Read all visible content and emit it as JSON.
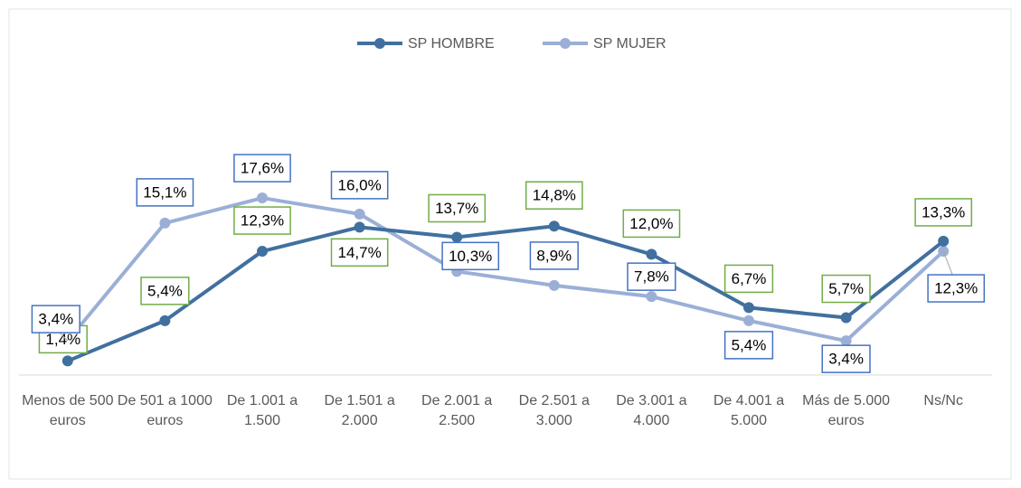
{
  "chart_data": {
    "type": "line",
    "categories": [
      "Menos de 500 euros",
      "De 501 a 1000 euros",
      "De 1.001 a 1.500",
      "De 1.501 a 2.000",
      "De 2.001 a 2.500",
      "De 2.501 a 3.000",
      "De 3.001 a 4.000",
      "De 4.001 a 5.000",
      "Más de 5.000 euros",
      "Ns/Nc"
    ],
    "series": [
      {
        "name": "SP HOMBRE",
        "color": "#41709f",
        "label_border": "#70ad47",
        "values": [
          1.4,
          5.4,
          12.3,
          14.7,
          13.7,
          14.8,
          12.0,
          6.7,
          5.7,
          13.3
        ],
        "value_labels": [
          "1,4%",
          "5,4%",
          "12,3%",
          "14,7%",
          "13,7%",
          "14,8%",
          "12,0%",
          "6,7%",
          "5,7%",
          "13,3%"
        ]
      },
      {
        "name": "SP MUJER",
        "color": "#9bafd6",
        "label_border": "#4472c4",
        "values": [
          3.4,
          15.1,
          17.6,
          16.0,
          10.3,
          8.9,
          7.8,
          5.4,
          3.4,
          12.3
        ],
        "value_labels": [
          "3,4%",
          "15,1%",
          "17,6%",
          "16,0%",
          "10,3%",
          "8,9%",
          "7,8%",
          "5,4%",
          "3,4%",
          "12,3%"
        ]
      }
    ],
    "ylim": [
      0,
      30
    ],
    "legend": "top"
  }
}
